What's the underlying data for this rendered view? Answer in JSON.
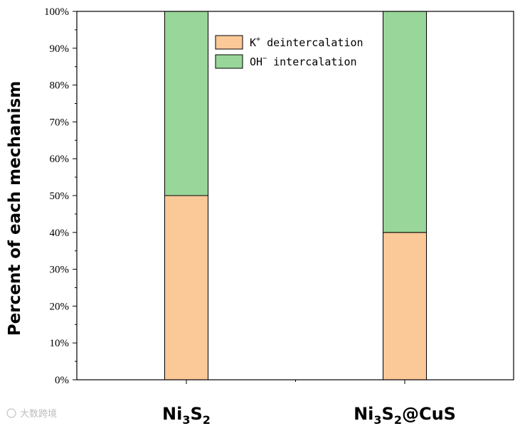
{
  "chart_data": {
    "type": "bar",
    "stacked": true,
    "categories": [
      {
        "base": "Ni",
        "sub1": "3",
        "mid": "S",
        "sub2": "2",
        "suffix": ""
      },
      {
        "base": "Ni",
        "sub1": "3",
        "mid": "S",
        "sub2": "2",
        "suffix": "@CuS"
      }
    ],
    "series": [
      {
        "name_base": "K",
        "name_sup": "+",
        "name_rest": " deintercalation",
        "color": "#fbc898",
        "values": [
          50,
          40
        ]
      },
      {
        "name_base": "OH",
        "name_sup": "−",
        "name_rest": " intercalation",
        "color": "#99d699",
        "values": [
          50,
          60
        ]
      }
    ],
    "ylabel": "Percent of each mechanism",
    "ylim": [
      0,
      100
    ],
    "yticks": [
      0,
      10,
      20,
      30,
      40,
      50,
      60,
      70,
      80,
      90,
      100
    ],
    "ytick_suffix": "%",
    "legend_position": "top-center",
    "grid": false
  },
  "watermark": "大数跨境"
}
